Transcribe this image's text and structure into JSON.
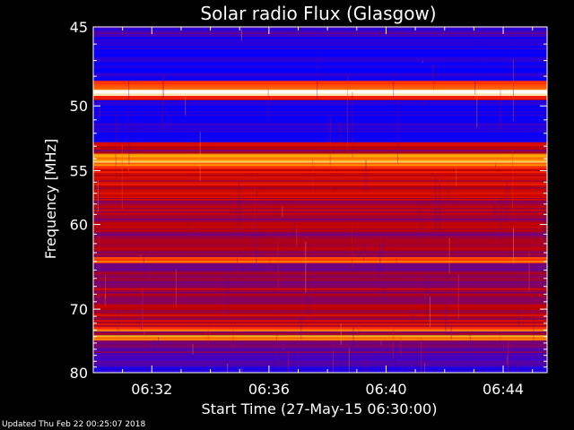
{
  "chart_data": {
    "type": "heatmap",
    "title": "Solar radio Flux (Glasgow)",
    "xlabel": "Start Time (27-May-15 06:30:00)",
    "ylabel": "Frequency [MHz]",
    "x_unit": "time",
    "x_ticks": [
      "06:32",
      "06:36",
      "06:40",
      "06:44"
    ],
    "x_tick_minutes": [
      2,
      6,
      10,
      14
    ],
    "xlim_minutes": [
      0,
      15.5
    ],
    "y_ticks": [
      45,
      50,
      55,
      60,
      70,
      80
    ],
    "ylim": [
      45,
      80
    ],
    "y_scale": "reciprocal",
    "colormap": [
      "#0000ff",
      "#3b00c8",
      "#7a0070",
      "#c00000",
      "#ff2a00",
      "#ffb000",
      "#ffffff"
    ],
    "bands": [
      {
        "freq": [
          45.0,
          45.6
        ],
        "intensity": 0.15
      },
      {
        "freq": [
          45.6,
          48.3
        ],
        "intensity": 0.05
      },
      {
        "freq": [
          48.3,
          48.9
        ],
        "intensity": 0.75
      },
      {
        "freq": [
          48.9,
          49.3
        ],
        "intensity": 1.0
      },
      {
        "freq": [
          49.3,
          49.6
        ],
        "intensity": 0.55
      },
      {
        "freq": [
          49.6,
          51.3
        ],
        "intensity": 0.06
      },
      {
        "freq": [
          51.3,
          51.8
        ],
        "intensity": 0.18
      },
      {
        "freq": [
          51.8,
          52.7
        ],
        "intensity": 0.08
      },
      {
        "freq": [
          52.7,
          53.0
        ],
        "intensity": 0.55
      },
      {
        "freq": [
          53.0,
          53.6
        ],
        "intensity": 0.45
      },
      {
        "freq": [
          53.6,
          54.6
        ],
        "intensity": 0.8
      },
      {
        "freq": [
          54.6,
          55.2
        ],
        "intensity": 0.6
      },
      {
        "freq": [
          55.2,
          57.5
        ],
        "intensity": 0.5
      },
      {
        "freq": [
          57.5,
          60.0
        ],
        "intensity": 0.45
      },
      {
        "freq": [
          60.0,
          63.5
        ],
        "intensity": 0.42
      },
      {
        "freq": [
          63.5,
          64.2
        ],
        "intensity": 0.72
      },
      {
        "freq": [
          64.2,
          67.0
        ],
        "intensity": 0.35
      },
      {
        "freq": [
          67.0,
          70.5
        ],
        "intensity": 0.45
      },
      {
        "freq": [
          70.5,
          72.5
        ],
        "intensity": 0.48
      },
      {
        "freq": [
          72.5,
          73.2
        ],
        "intensity": 0.7
      },
      {
        "freq": [
          73.2,
          73.8
        ],
        "intensity": 0.4
      },
      {
        "freq": [
          73.8,
          74.6
        ],
        "intensity": 0.78
      },
      {
        "freq": [
          74.6,
          77.0
        ],
        "intensity": 0.3
      },
      {
        "freq": [
          77.0,
          79.0
        ],
        "intensity": 0.2
      },
      {
        "freq": [
          79.0,
          80.0
        ],
        "intensity": 0.1
      }
    ],
    "grid": false,
    "legend": "none"
  },
  "footer": {
    "updated": "Updated Thu Feb 22 00:25:07 2018"
  }
}
